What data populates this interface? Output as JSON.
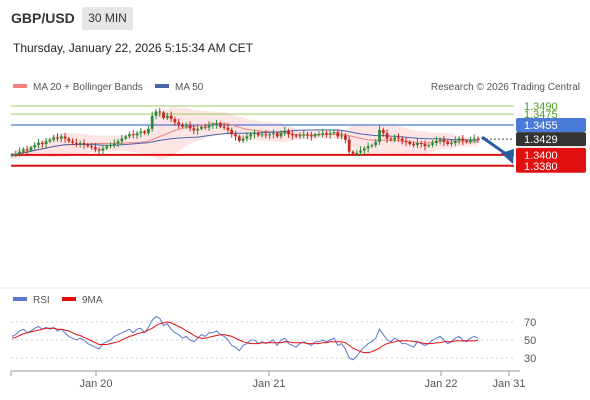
{
  "header": {
    "symbol": "GBP/USD",
    "timeframe": "30 MIN",
    "datetime": "Thursday, January 22, 2026 5:15:34 AM CET",
    "copyright": "Research © 2026 Trading Central"
  },
  "colors": {
    "candle_up": "#2e8b3a",
    "candle_down": "#c8281e",
    "ma20": "#f08080",
    "bollinger_fill": "#fde0e0",
    "ma50": "#4a64a8",
    "target_line": "#9acd64",
    "pivot_line": "#4a7bd8",
    "support_line": "#e01010",
    "current_price": "#333333",
    "arrow": "#2a5aa0",
    "rsi": "#5a78d0",
    "rsi_ma": "#e01010"
  },
  "chart_data": [
    {
      "type": "candlestick",
      "title": "GBP/USD",
      "timeframe": "30 MIN",
      "legend": [
        "MA 20 + Bollinger Bands",
        "MA 50"
      ],
      "x_tick_labels": [
        "Jan 20",
        "Jan 21",
        "Jan 22",
        "Jan 31"
      ],
      "ylim": [
        1.3378,
        1.3496
      ],
      "price_lines": [
        {
          "label": "1.3490",
          "value": 1.349,
          "kind": "target"
        },
        {
          "label": "1.3475",
          "value": 1.3475,
          "kind": "target"
        },
        {
          "label": "1.3455",
          "value": 1.3455,
          "kind": "pivot"
        },
        {
          "label": "1.3429",
          "value": 1.3429,
          "kind": "current"
        },
        {
          "label": "1.3400",
          "value": 1.34,
          "kind": "support"
        },
        {
          "label": "1.3380",
          "value": 1.338,
          "kind": "support"
        }
      ],
      "forecast_arrow": {
        "from": 1.3429,
        "to": 1.3385
      },
      "close": [
        1.34,
        1.3402,
        1.3406,
        1.341,
        1.3408,
        1.3414,
        1.3418,
        1.3422,
        1.342,
        1.3425,
        1.3428,
        1.3432,
        1.343,
        1.3434,
        1.343,
        1.3425,
        1.3422,
        1.342,
        1.3422,
        1.3419,
        1.3416,
        1.3414,
        1.341,
        1.3408,
        1.3412,
        1.3416,
        1.3418,
        1.3421,
        1.3425,
        1.343,
        1.3434,
        1.3438,
        1.3436,
        1.344,
        1.3443,
        1.344,
        1.3448,
        1.3472,
        1.348,
        1.3478,
        1.3468,
        1.3472,
        1.3466,
        1.346,
        1.3456,
        1.3452,
        1.3454,
        1.3449,
        1.3445,
        1.3448,
        1.3452,
        1.345,
        1.3454,
        1.3456,
        1.3458,
        1.3452,
        1.345,
        1.3446,
        1.3438,
        1.3434,
        1.3426,
        1.343,
        1.3434,
        1.3438,
        1.344,
        1.3436,
        1.3438,
        1.3436,
        1.3438,
        1.344,
        1.3434,
        1.344,
        1.3444,
        1.3438,
        1.3436,
        1.3434,
        1.3436,
        1.3438,
        1.3436,
        1.3434,
        1.3438,
        1.3438,
        1.344,
        1.3438,
        1.344,
        1.3442,
        1.3434,
        1.3436,
        1.3428,
        1.3406,
        1.3402,
        1.3404,
        1.3408,
        1.3412,
        1.3416,
        1.3418,
        1.3424,
        1.3446,
        1.344,
        1.343,
        1.3428,
        1.3432,
        1.343,
        1.3426,
        1.3424,
        1.342,
        1.3418,
        1.3422,
        1.342,
        1.3416,
        1.3418,
        1.3422,
        1.3426,
        1.3428,
        1.3424,
        1.342,
        1.3422,
        1.3426,
        1.343,
        1.3426,
        1.3424,
        1.3428,
        1.343,
        1.3429
      ],
      "rsi": {
        "legend": [
          "RSI",
          "9MA"
        ],
        "yticks": [
          70,
          50,
          30
        ],
        "ylim": [
          20,
          80
        ],
        "rsi_values": [
          54,
          56,
          60,
          62,
          58,
          60,
          63,
          65,
          62,
          64,
          62,
          64,
          60,
          62,
          58,
          54,
          52,
          50,
          52,
          50,
          46,
          44,
          42,
          40,
          46,
          48,
          50,
          54,
          56,
          58,
          60,
          62,
          58,
          62,
          63,
          58,
          64,
          72,
          76,
          74,
          66,
          68,
          62,
          58,
          56,
          52,
          54,
          50,
          48,
          52,
          56,
          54,
          58,
          58,
          60,
          56,
          54,
          50,
          44,
          42,
          38,
          44,
          46,
          50,
          50,
          46,
          48,
          46,
          48,
          50,
          44,
          50,
          52,
          46,
          44,
          42,
          46,
          48,
          46,
          44,
          48,
          48,
          50,
          48,
          50,
          52,
          44,
          46,
          40,
          30,
          28,
          32,
          38,
          42,
          46,
          48,
          52,
          62,
          56,
          50,
          48,
          52,
          50,
          46,
          46,
          44,
          42,
          48,
          46,
          44,
          46,
          50,
          52,
          54,
          50,
          46,
          48,
          52,
          54,
          50,
          48,
          52,
          54,
          52
        ],
        "ma_values": [
          52,
          53,
          55,
          57,
          58,
          59,
          60,
          61,
          62,
          63,
          63,
          63,
          62,
          62,
          61,
          60,
          58,
          56,
          55,
          53,
          51,
          49,
          47,
          45,
          45,
          45,
          46,
          47,
          48,
          50,
          52,
          54,
          55,
          57,
          58,
          59,
          61,
          63,
          66,
          68,
          69,
          70,
          69,
          67,
          65,
          63,
          60,
          58,
          55,
          53,
          52,
          52,
          53,
          54,
          55,
          56,
          56,
          55,
          54,
          52,
          50,
          48,
          47,
          46,
          46,
          46,
          47,
          47,
          47,
          47,
          47,
          47,
          48,
          48,
          47,
          47,
          47,
          47,
          46,
          46,
          46,
          46,
          47,
          47,
          48,
          48,
          48,
          48,
          47,
          44,
          41,
          39,
          37,
          36,
          36,
          37,
          39,
          41,
          44,
          46,
          47,
          48,
          49,
          49,
          49,
          49,
          48,
          48,
          47,
          46,
          46,
          46,
          47,
          47,
          48,
          48,
          48,
          49,
          49,
          49,
          49,
          49,
          49,
          50
        ]
      }
    }
  ]
}
